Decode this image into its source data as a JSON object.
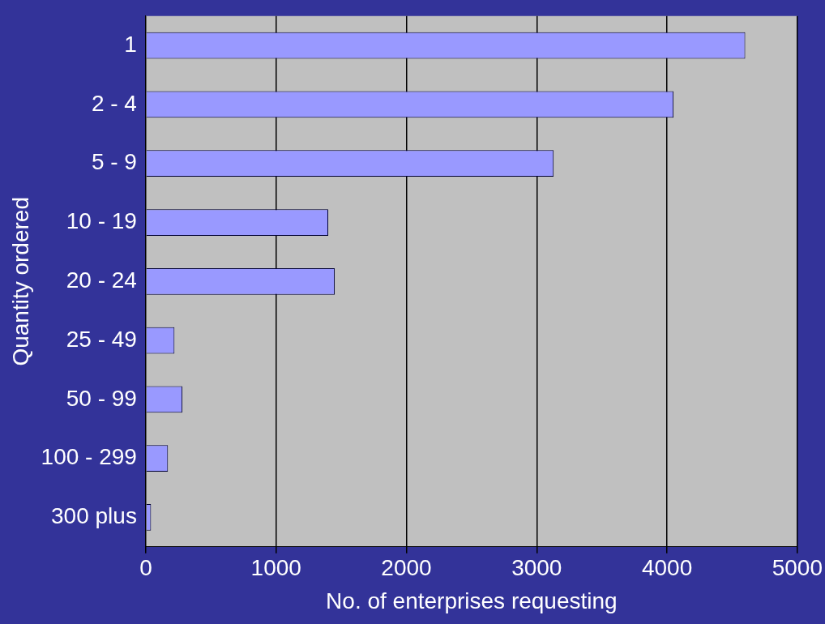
{
  "chart_data": {
    "type": "bar",
    "orientation": "horizontal",
    "xlabel": "No. of enterprises requesting",
    "ylabel": "Quantity ordered",
    "categories": [
      "1",
      "2 - 4",
      "5 - 9",
      "10 - 19",
      "20 - 24",
      "25 - 49",
      "50 - 99",
      "100 - 299",
      "300 plus"
    ],
    "values": [
      4600,
      4050,
      3130,
      1400,
      1450,
      220,
      280,
      170,
      40
    ],
    "color": "#9999ff",
    "xlim": [
      0,
      5000
    ],
    "xticks": [
      0,
      1000,
      2000,
      3000,
      4000,
      5000
    ],
    "grid": "x"
  }
}
